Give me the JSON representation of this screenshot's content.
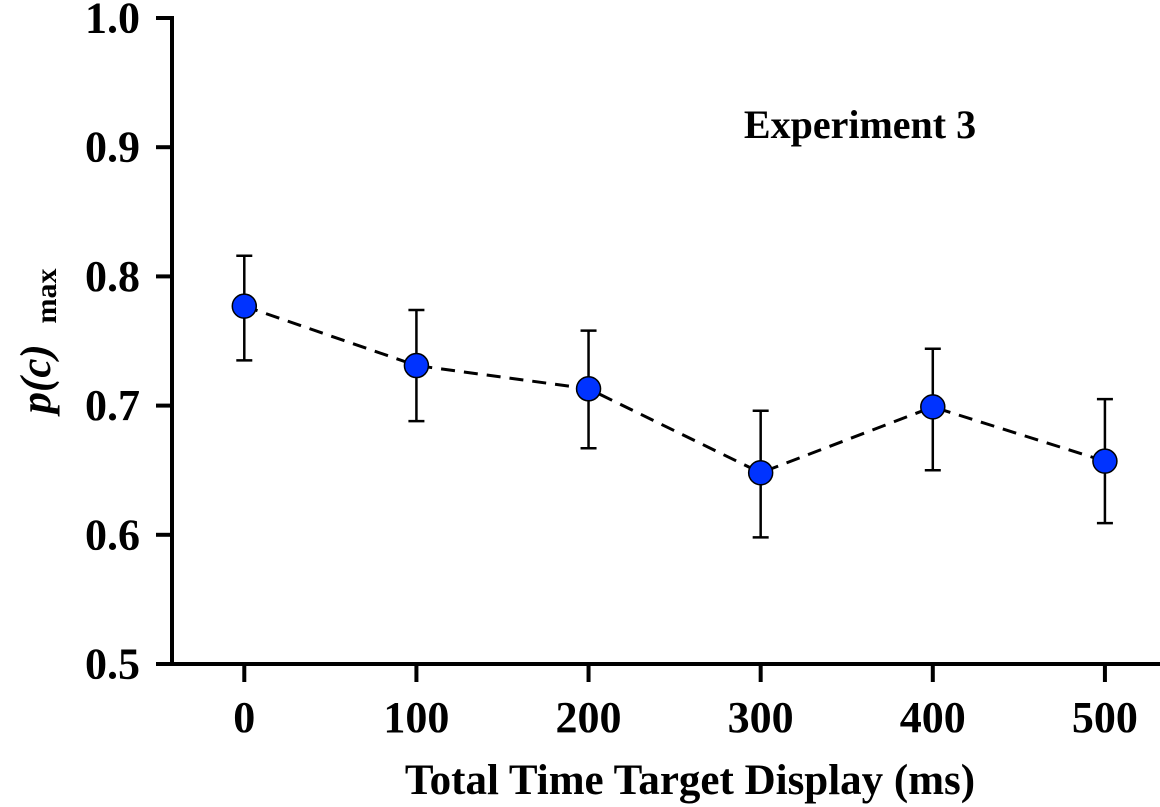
{
  "chart_data": {
    "type": "line",
    "title": "",
    "annotation": "Experiment 3",
    "xlabel": "Total Time Target Display (ms)",
    "ylabel_main": "p(c)",
    "ylabel_sub": "max",
    "x": [
      0,
      100,
      200,
      300,
      400,
      500
    ],
    "xticks": [
      "0",
      "100",
      "200",
      "300",
      "400",
      "500"
    ],
    "xlim": [
      -42,
      532
    ],
    "ylim": [
      0.5,
      1.0
    ],
    "yticks": [
      "0.5",
      "0.6",
      "0.7",
      "0.8",
      "0.9",
      "1.0"
    ],
    "grid": false,
    "series": [
      {
        "name": "Experiment 3",
        "values": [
          0.777,
          0.731,
          0.713,
          0.648,
          0.699,
          0.657
        ],
        "error_upper": [
          0.816,
          0.774,
          0.758,
          0.696,
          0.744,
          0.705
        ],
        "error_lower": [
          0.735,
          0.688,
          0.667,
          0.598,
          0.65,
          0.609
        ],
        "marker_color": "#0033ff",
        "line_color": "#000000",
        "line_style": "dashed"
      }
    ]
  }
}
